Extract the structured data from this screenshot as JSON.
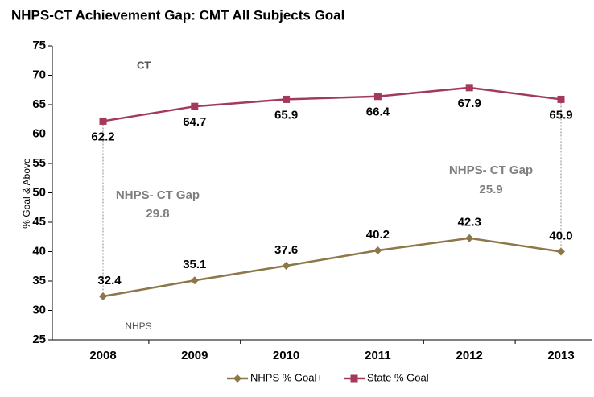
{
  "chart_data": {
    "type": "line",
    "title": "NHPS-CT Achievement Gap: CMT All Subjects Goal",
    "y_label": "% Goal & Above",
    "categories": [
      "2008",
      "2009",
      "2010",
      "2011",
      "2012",
      "2013"
    ],
    "series": [
      {
        "name": "NHPS % Goal+",
        "color": "#8b7748",
        "marker": "diamond",
        "values": [
          32.4,
          35.1,
          37.6,
          40.2,
          42.3,
          40.0
        ],
        "value_labels": [
          "32.4",
          "35.1",
          "37.6",
          "40.2",
          "42.3",
          "40.0"
        ]
      },
      {
        "name": "State % Goal",
        "color": "#a33a5a",
        "marker": "square",
        "values": [
          62.2,
          64.7,
          65.9,
          66.4,
          67.9,
          65.9
        ]
      }
    ],
    "ylim": [
      25,
      75
    ],
    "yticks": [
      25,
      30,
      35,
      40,
      45,
      50,
      55,
      60,
      65,
      70,
      75
    ],
    "legend": "bottom",
    "annotations": [
      "CT",
      "NHPS",
      "NHPS- CT Gap",
      "29.8",
      "NHPS- CT Gap",
      "25.9"
    ]
  }
}
